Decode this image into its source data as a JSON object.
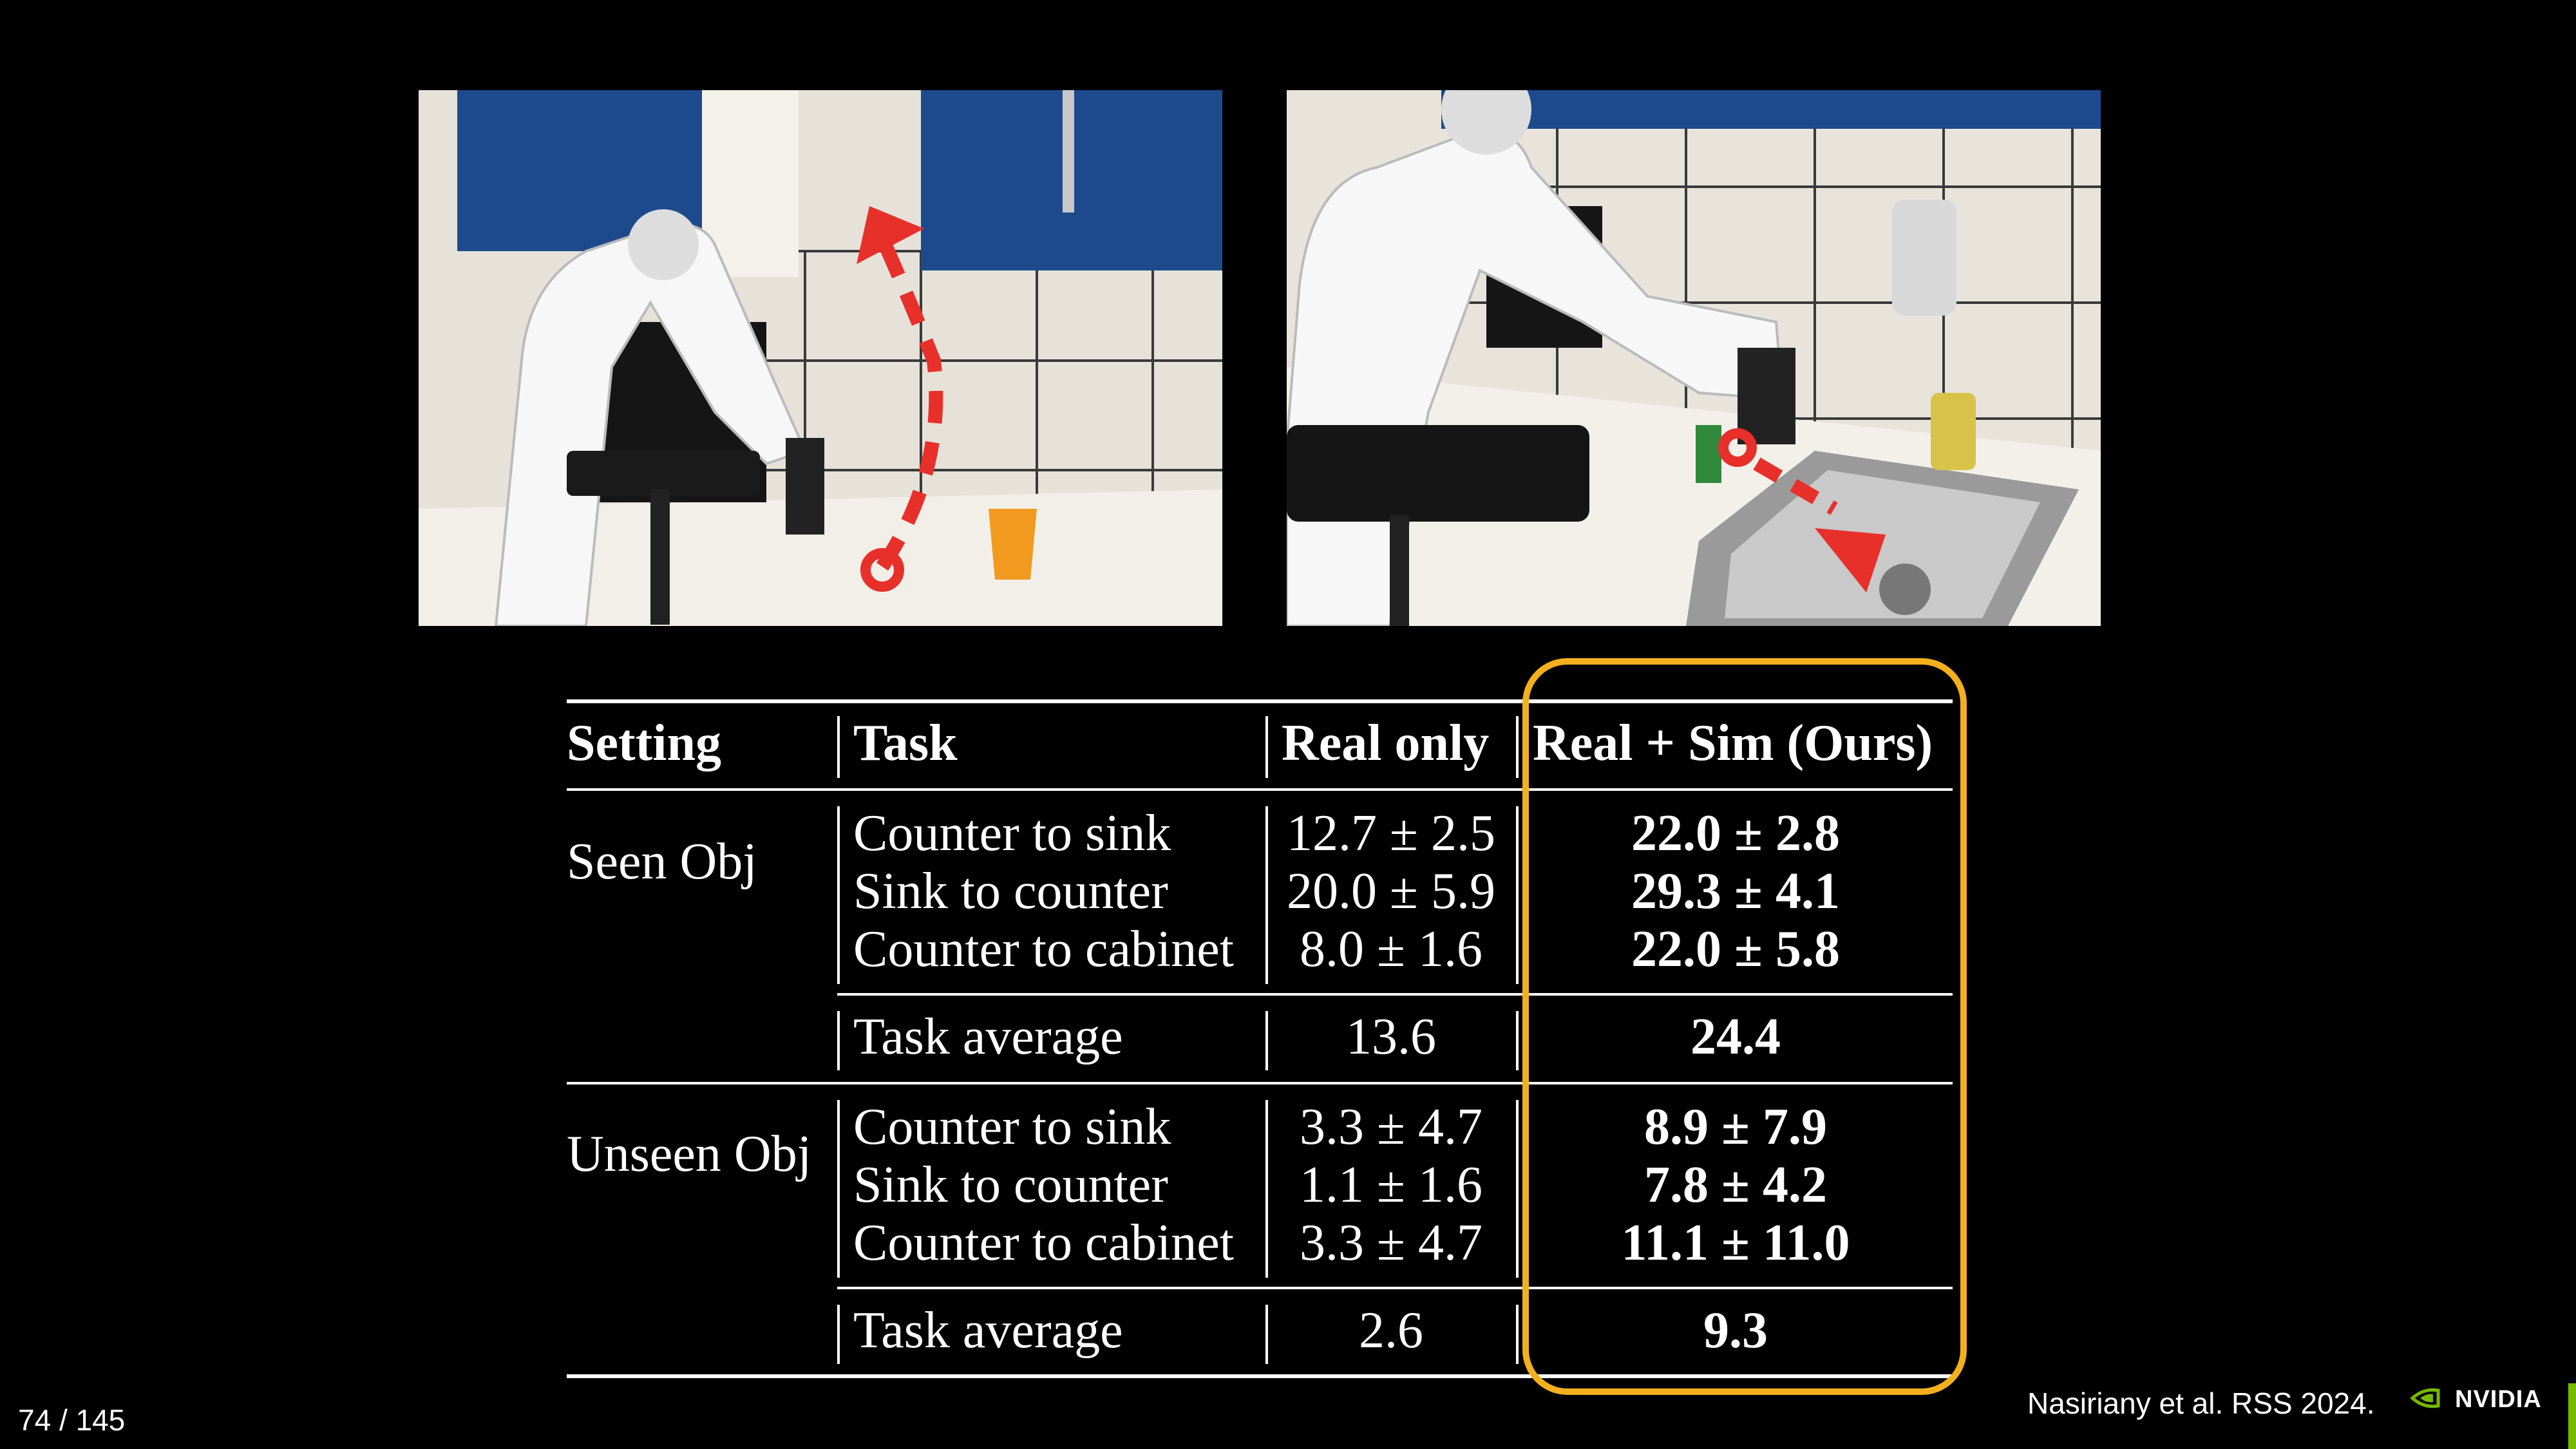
{
  "table": {
    "headers": [
      "Setting",
      "Task",
      "Real only",
      "Real + Sim (Ours)"
    ],
    "groups": [
      {
        "setting": "Seen Obj",
        "rows": [
          {
            "task": "Counter to sink",
            "real": "12.7 ± 2.5",
            "ours": "22.0 ± 2.8"
          },
          {
            "task": "Sink to counter",
            "real": "20.0 ± 5.9",
            "ours": "29.3 ± 4.1"
          },
          {
            "task": "Counter to cabinet",
            "real": "8.0 ± 1.6",
            "ours": "22.0 ± 5.8"
          }
        ],
        "average": {
          "task": "Task average",
          "real": "13.6",
          "ours": "24.4"
        }
      },
      {
        "setting": "Unseen Obj",
        "rows": [
          {
            "task": "Counter to sink",
            "real": "3.3 ± 4.7",
            "ours": "8.9 ± 7.9"
          },
          {
            "task": "Sink to counter",
            "real": "1.1 ± 1.6",
            "ours": "7.8 ± 4.2"
          },
          {
            "task": "Counter to cabinet",
            "real": "3.3 ± 4.7",
            "ours": "11.1 ± 11.0"
          }
        ],
        "average": {
          "task": "Task average",
          "real": "2.6",
          "ours": "9.3"
        }
      }
    ]
  },
  "footer": {
    "page_number": "74 / 145",
    "citation": "Nasiriany et al. RSS 2024.",
    "logo_text": "NVIDIA"
  },
  "colors": {
    "highlight": "#f2b01e",
    "arrow": "#e8302a",
    "cabinet": "#1d4a8c",
    "nvidia_green": "#76b900"
  },
  "icons": [
    "nvidia-eye-icon",
    "trajectory-arrow-icon"
  ]
}
